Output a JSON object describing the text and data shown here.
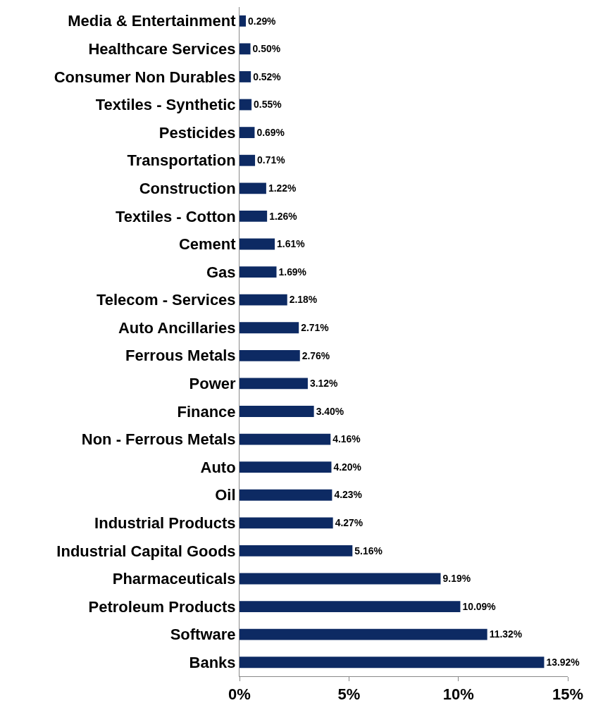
{
  "chart_data": {
    "type": "bar",
    "orientation": "horizontal",
    "categories": [
      "Media & Entertainment",
      "Healthcare Services",
      "Consumer Non Durables",
      "Textiles - Synthetic",
      "Pesticides",
      "Transportation",
      "Construction",
      "Textiles - Cotton",
      "Cement",
      "Gas",
      "Telecom - Services",
      "Auto Ancillaries",
      "Ferrous Metals",
      "Power",
      "Finance",
      "Non - Ferrous Metals",
      "Auto",
      "Oil",
      "Industrial Products",
      "Industrial Capital Goods",
      "Pharmaceuticals",
      "Petroleum Products",
      "Software",
      "Banks"
    ],
    "values": [
      0.29,
      0.5,
      0.52,
      0.55,
      0.69,
      0.71,
      1.22,
      1.26,
      1.61,
      1.69,
      2.18,
      2.71,
      2.76,
      3.12,
      3.4,
      4.16,
      4.2,
      4.23,
      4.27,
      5.16,
      9.19,
      10.09,
      11.32,
      13.92
    ],
    "value_labels": [
      "0.29%",
      "0.50%",
      "0.52%",
      "0.55%",
      "0.69%",
      "0.71%",
      "1.22%",
      "1.26%",
      "1.61%",
      "1.69%",
      "2.18%",
      "2.71%",
      "2.76%",
      "3.12%",
      "3.40%",
      "4.16%",
      "4.20%",
      "4.23%",
      "4.27%",
      "5.16%",
      "9.19%",
      "10.09%",
      "11.32%",
      "13.92%"
    ],
    "color": "#0d2a63",
    "xlim": [
      0,
      15
    ],
    "xticks": [
      {
        "value": 0,
        "label": "0%"
      },
      {
        "value": 5,
        "label": "5%"
      },
      {
        "value": 10,
        "label": "10%"
      },
      {
        "value": 15,
        "label": "15%"
      }
    ],
    "grid": false,
    "legend": false
  }
}
